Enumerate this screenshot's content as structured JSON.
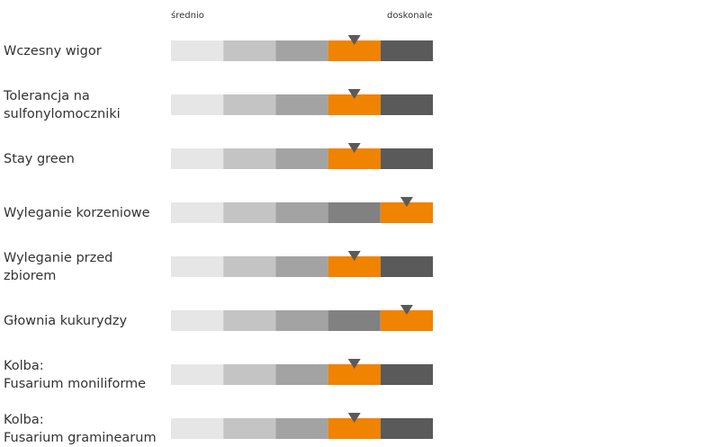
{
  "chart_data": {
    "type": "rating-scale",
    "scale": {
      "min_label": "średnio",
      "max_label": "doskonale",
      "segments": 5
    },
    "segment_colors": [
      "#e6e6e6",
      "#c4c4c4",
      "#a3a3a3",
      "#818181",
      "#5a5a5a"
    ],
    "highlight_color": "#f08300",
    "marker_color": "#5a5a5a",
    "traits": [
      {
        "label_lines": [
          "Wczesny wigor"
        ],
        "rating": 4
      },
      {
        "label_lines": [
          "Tolerancja na",
          "sulfonylomoczniki"
        ],
        "rating": 4
      },
      {
        "label_lines": [
          "Stay green"
        ],
        "rating": 4
      },
      {
        "label_lines": [
          "Wyleganie korzeniowe"
        ],
        "rating": 5
      },
      {
        "label_lines": [
          "Wyleganie przed",
          "zbiorem"
        ],
        "rating": 4
      },
      {
        "label_lines": [
          "Głownia kukurydzy"
        ],
        "rating": 5
      },
      {
        "label_lines": [
          "Kolba:",
          "Fusarium moniliforme"
        ],
        "rating": 4
      },
      {
        "label_lines": [
          "Kolba:",
          "Fusarium graminearum"
        ],
        "rating": 4
      }
    ]
  }
}
